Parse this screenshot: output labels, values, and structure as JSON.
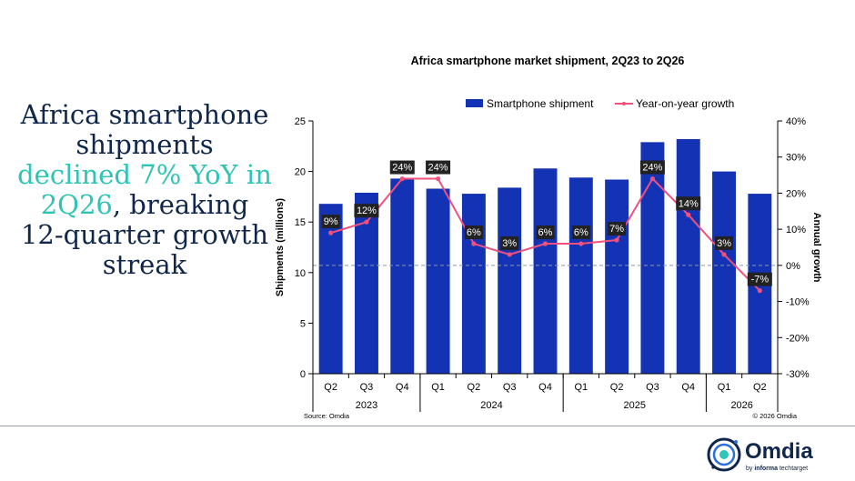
{
  "headline": {
    "part1": "Africa smartphone shipments ",
    "highlight": "declined 7% YoY in 2Q26",
    "part2": ", breaking 12-quarter growth streak"
  },
  "chart_data": {
    "type": "bar",
    "title": "Africa smartphone market shipment, 2Q23 to 2Q26",
    "ylabel": "Shipments (millions)",
    "y2label": "Annual growth",
    "ylim": [
      0,
      25
    ],
    "yticks": [
      0,
      5,
      10,
      15,
      20,
      25
    ],
    "y2lim": [
      -30,
      40
    ],
    "y2ticks": [
      "40%",
      "30%",
      "20%",
      "10%",
      "0%",
      "-10%",
      "-20%",
      "-30%"
    ],
    "categories": [
      "Q2",
      "Q3",
      "Q4",
      "Q1",
      "Q2",
      "Q3",
      "Q4",
      "Q1",
      "Q2",
      "Q3",
      "Q4",
      "Q1",
      "Q2"
    ],
    "years": [
      {
        "label": "2023",
        "count": 3
      },
      {
        "label": "2024",
        "count": 4
      },
      {
        "label": "2025",
        "count": 4
      },
      {
        "label": "2026",
        "count": 2
      }
    ],
    "series": [
      {
        "name": "Smartphone shipment",
        "type": "bar",
        "color": "#1432b4",
        "values": [
          16.8,
          17.9,
          19.3,
          18.3,
          17.8,
          18.4,
          20.3,
          19.4,
          19.2,
          22.9,
          23.2,
          20.0,
          17.8
        ]
      },
      {
        "name": "Year-on-year growth",
        "type": "line",
        "axis": "right",
        "color": "#f0507a",
        "values": [
          9,
          12,
          24,
          24,
          6,
          3,
          6,
          6,
          7,
          24,
          14,
          3,
          -7
        ],
        "labels": [
          "9%",
          "12%",
          "24%",
          "24%",
          "6%",
          "3%",
          "6%",
          "6%",
          "7%",
          "24%",
          "14%",
          "3%",
          "-7%"
        ]
      }
    ],
    "legend_position": "top-right",
    "zero_line": "dashed",
    "source": "Source: Omdia",
    "copyright": "© 2026 Omdia"
  },
  "logo": {
    "name": "Omdia",
    "tagline_prefix": "by ",
    "tagline_brand": "informa",
    "tagline_suffix": " techtarget"
  },
  "colors": {
    "bar": "#1432b4",
    "line": "#f0507a",
    "headline": "#10264a",
    "highlight": "#2ec4b6"
  }
}
